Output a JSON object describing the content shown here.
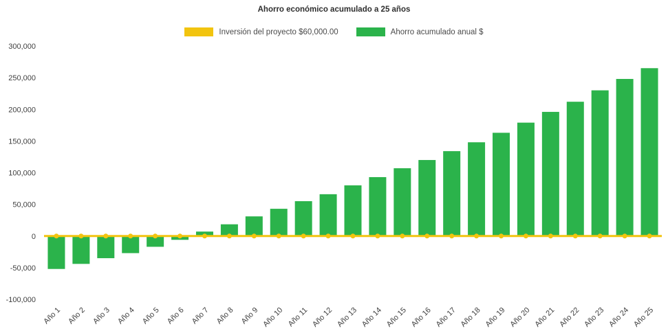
{
  "chart_data": {
    "type": "bar",
    "title": "Ahorro económico acumulado a 25 años",
    "categories": [
      "Año 1",
      "Año 2",
      "Año 3",
      "Año 4",
      "Año 5",
      "Año 6",
      "Año 7",
      "Año 8",
      "Año 9",
      "Año 10",
      "Año 11",
      "Año 12",
      "Año 13",
      "Año 14",
      "Año 15",
      "Año 16",
      "Año 17",
      "Año 18",
      "Año 19",
      "Año 20",
      "Año 21",
      "Año 22",
      "Año 23",
      "Año 24",
      "Año 25"
    ],
    "series": [
      {
        "name": "Inversión del proyecto $60,000.00",
        "type": "line",
        "color": "#f2c40f",
        "values": [
          0,
          0,
          0,
          0,
          0,
          0,
          0,
          0,
          0,
          0,
          0,
          0,
          0,
          0,
          0,
          0,
          0,
          0,
          0,
          0,
          0,
          0,
          0,
          0,
          0
        ]
      },
      {
        "name": "Ahorro acumulado anual $",
        "type": "bar",
        "color": "#2bb34b",
        "values": [
          -52000,
          -44000,
          -35000,
          -27000,
          -17000,
          -6000,
          7000,
          18500,
          31000,
          43000,
          55000,
          66000,
          80000,
          93000,
          107000,
          120000,
          134000,
          148000,
          163000,
          179000,
          196000,
          212000,
          230000,
          248000,
          265000
        ]
      }
    ],
    "xlabel": "",
    "ylabel": "",
    "ylim": [
      -100000,
      300000
    ],
    "ytick_step": 50000,
    "ytick_labels": [
      "-100,000",
      "-50,000",
      "0",
      "50,000",
      "100,000",
      "150,000",
      "200,000",
      "250,000",
      "300,000"
    ],
    "grid": false,
    "legend_position": "top",
    "x_label_rotation": -45
  }
}
